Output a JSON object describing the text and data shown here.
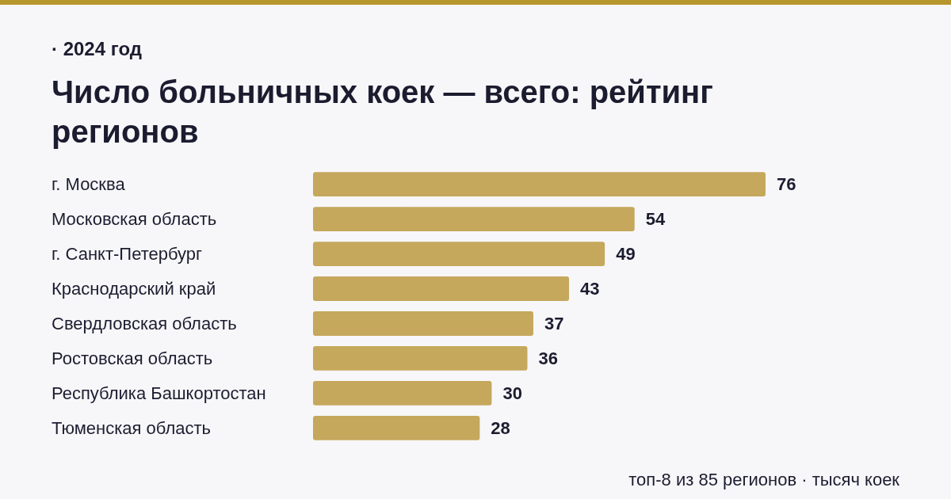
{
  "chart_data": {
    "type": "bar",
    "orientation": "horizontal",
    "title": "Число больничных коек — всего: рейтинг регионов",
    "subtitle": "· 2024 год",
    "categories": [
      "г. Москва",
      "Московская область",
      "г. Санкт-Петербург",
      "Краснодарский край",
      "Свердловская область",
      "Ростовская область",
      "Республика Башкортостан",
      "Тюменская область"
    ],
    "values": [
      76,
      54,
      49,
      43,
      37,
      36,
      30,
      28
    ],
    "color": "#c5a85c",
    "data_labels": true,
    "annotations": [
      "топ-8 из 85 регионов · тысяч коек"
    ]
  }
}
